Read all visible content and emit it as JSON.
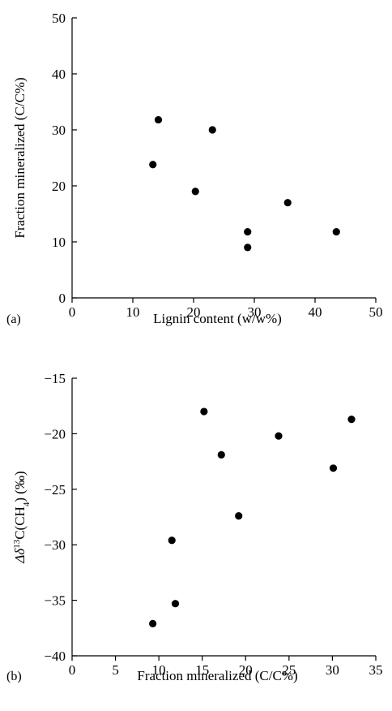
{
  "chart_data": [
    {
      "type": "scatter",
      "panel_label": "(a)",
      "xlabel": "Lignin content (w/w%)",
      "ylabel": "Fraction mineralized (C/C%)",
      "xlim": [
        0,
        50
      ],
      "ylim": [
        0,
        50
      ],
      "xticks": [
        0,
        10,
        20,
        30,
        40,
        50
      ],
      "yticks": [
        0,
        10,
        20,
        30,
        40,
        50
      ],
      "xtick_labels": [
        "0",
        "10",
        "20",
        "30",
        "40",
        "50"
      ],
      "ytick_labels": [
        "0",
        "10",
        "20",
        "30",
        "40",
        "50"
      ],
      "grid": false,
      "marker_color": "#000000",
      "points": [
        {
          "x": 13.3,
          "y": 23.8
        },
        {
          "x": 14.2,
          "y": 31.8
        },
        {
          "x": 20.3,
          "y": 19.0
        },
        {
          "x": 23.1,
          "y": 30.0
        },
        {
          "x": 28.9,
          "y": 11.8
        },
        {
          "x": 28.9,
          "y": 9.0
        },
        {
          "x": 35.5,
          "y": 17.0
        },
        {
          "x": 43.5,
          "y": 11.8
        }
      ]
    },
    {
      "type": "scatter",
      "panel_label": "(b)",
      "xlabel": "Fraction mineralized (C/C%)",
      "ylabel_parts": {
        "prefix": "Δδ",
        "sup": "13",
        "mid": "C(CH",
        "sub": "4",
        "suffix": ") (‰)"
      },
      "xlim": [
        0,
        35
      ],
      "ylim": [
        -40,
        -15
      ],
      "xticks": [
        0,
        5,
        10,
        15,
        20,
        25,
        30,
        35
      ],
      "yticks": [
        -40,
        -35,
        -30,
        -25,
        -20,
        -15
      ],
      "xtick_labels": [
        "0",
        "5",
        "10",
        "15",
        "20",
        "25",
        "30",
        "35"
      ],
      "ytick_labels": [
        "−40",
        "−35",
        "−30",
        "−25",
        "−20",
        "−15"
      ],
      "grid": false,
      "marker_color": "#000000",
      "points": [
        {
          "x": 9.3,
          "y": -37.1
        },
        {
          "x": 11.5,
          "y": -29.6
        },
        {
          "x": 11.9,
          "y": -35.3
        },
        {
          "x": 15.2,
          "y": -18.0
        },
        {
          "x": 17.2,
          "y": -21.9
        },
        {
          "x": 19.2,
          "y": -27.4
        },
        {
          "x": 23.8,
          "y": -20.2
        },
        {
          "x": 30.1,
          "y": -23.1
        },
        {
          "x": 32.2,
          "y": -18.7
        }
      ]
    }
  ]
}
